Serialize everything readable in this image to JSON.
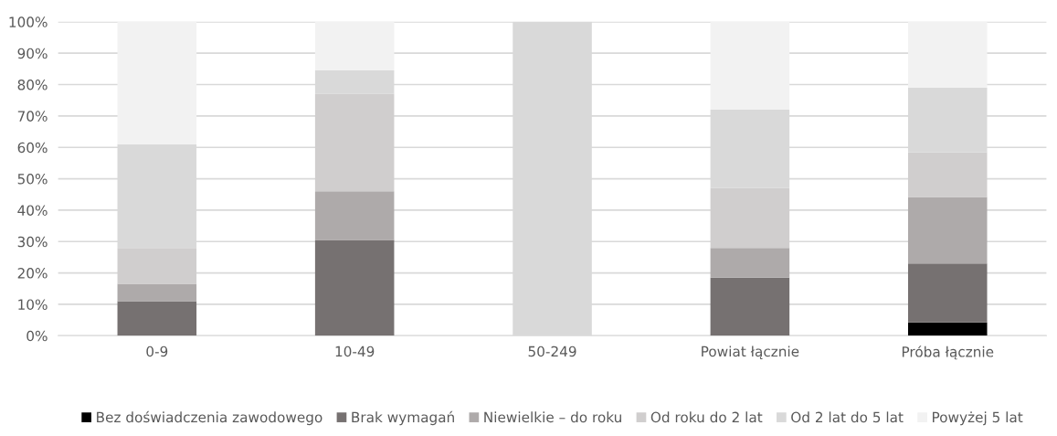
{
  "chart_data": {
    "type": "bar",
    "stacked": true,
    "categories": [
      "0-9",
      "10-49",
      "50-249",
      "Powiat łącznie",
      "Próba łącznie"
    ],
    "series": [
      {
        "name": "Bez doświadczenia zawodowego",
        "color": "#000000",
        "values": [
          0,
          0,
          0,
          0,
          4.2
        ]
      },
      {
        "name": "Brak wymagań",
        "color": "#767171",
        "values": [
          11,
          30.5,
          0,
          18.5,
          18.8
        ]
      },
      {
        "name": "Niewielkie – do roku",
        "color": "#aeaaaa",
        "values": [
          5.5,
          15.5,
          0,
          9.5,
          21.2
        ]
      },
      {
        "name": "Od roku do 2 lat",
        "color": "#d0cece",
        "values": [
          11.5,
          31,
          0,
          19,
          14.3
        ]
      },
      {
        "name": "Od 2 lat do 5 lat",
        "color": "#d9d9d9",
        "values": [
          33,
          7.5,
          100,
          25,
          20.5
        ]
      },
      {
        "name": "Powyżej 5 lat",
        "color": "#f2f2f2",
        "values": [
          39,
          15.5,
          0,
          28,
          21
        ]
      }
    ],
    "ylim": [
      0,
      100
    ],
    "yticks": [
      {
        "value": 0,
        "label": "0%"
      },
      {
        "value": 10,
        "label": "10%"
      },
      {
        "value": 20,
        "label": "20%"
      },
      {
        "value": 30,
        "label": "30%"
      },
      {
        "value": 40,
        "label": "40%"
      },
      {
        "value": 50,
        "label": "50%"
      },
      {
        "value": 60,
        "label": "60%"
      },
      {
        "value": 70,
        "label": "70%"
      },
      {
        "value": 80,
        "label": "80%"
      },
      {
        "value": 90,
        "label": "90%"
      },
      {
        "value": 100,
        "label": "100%"
      }
    ],
    "grid": "y",
    "legend": "bottom"
  }
}
